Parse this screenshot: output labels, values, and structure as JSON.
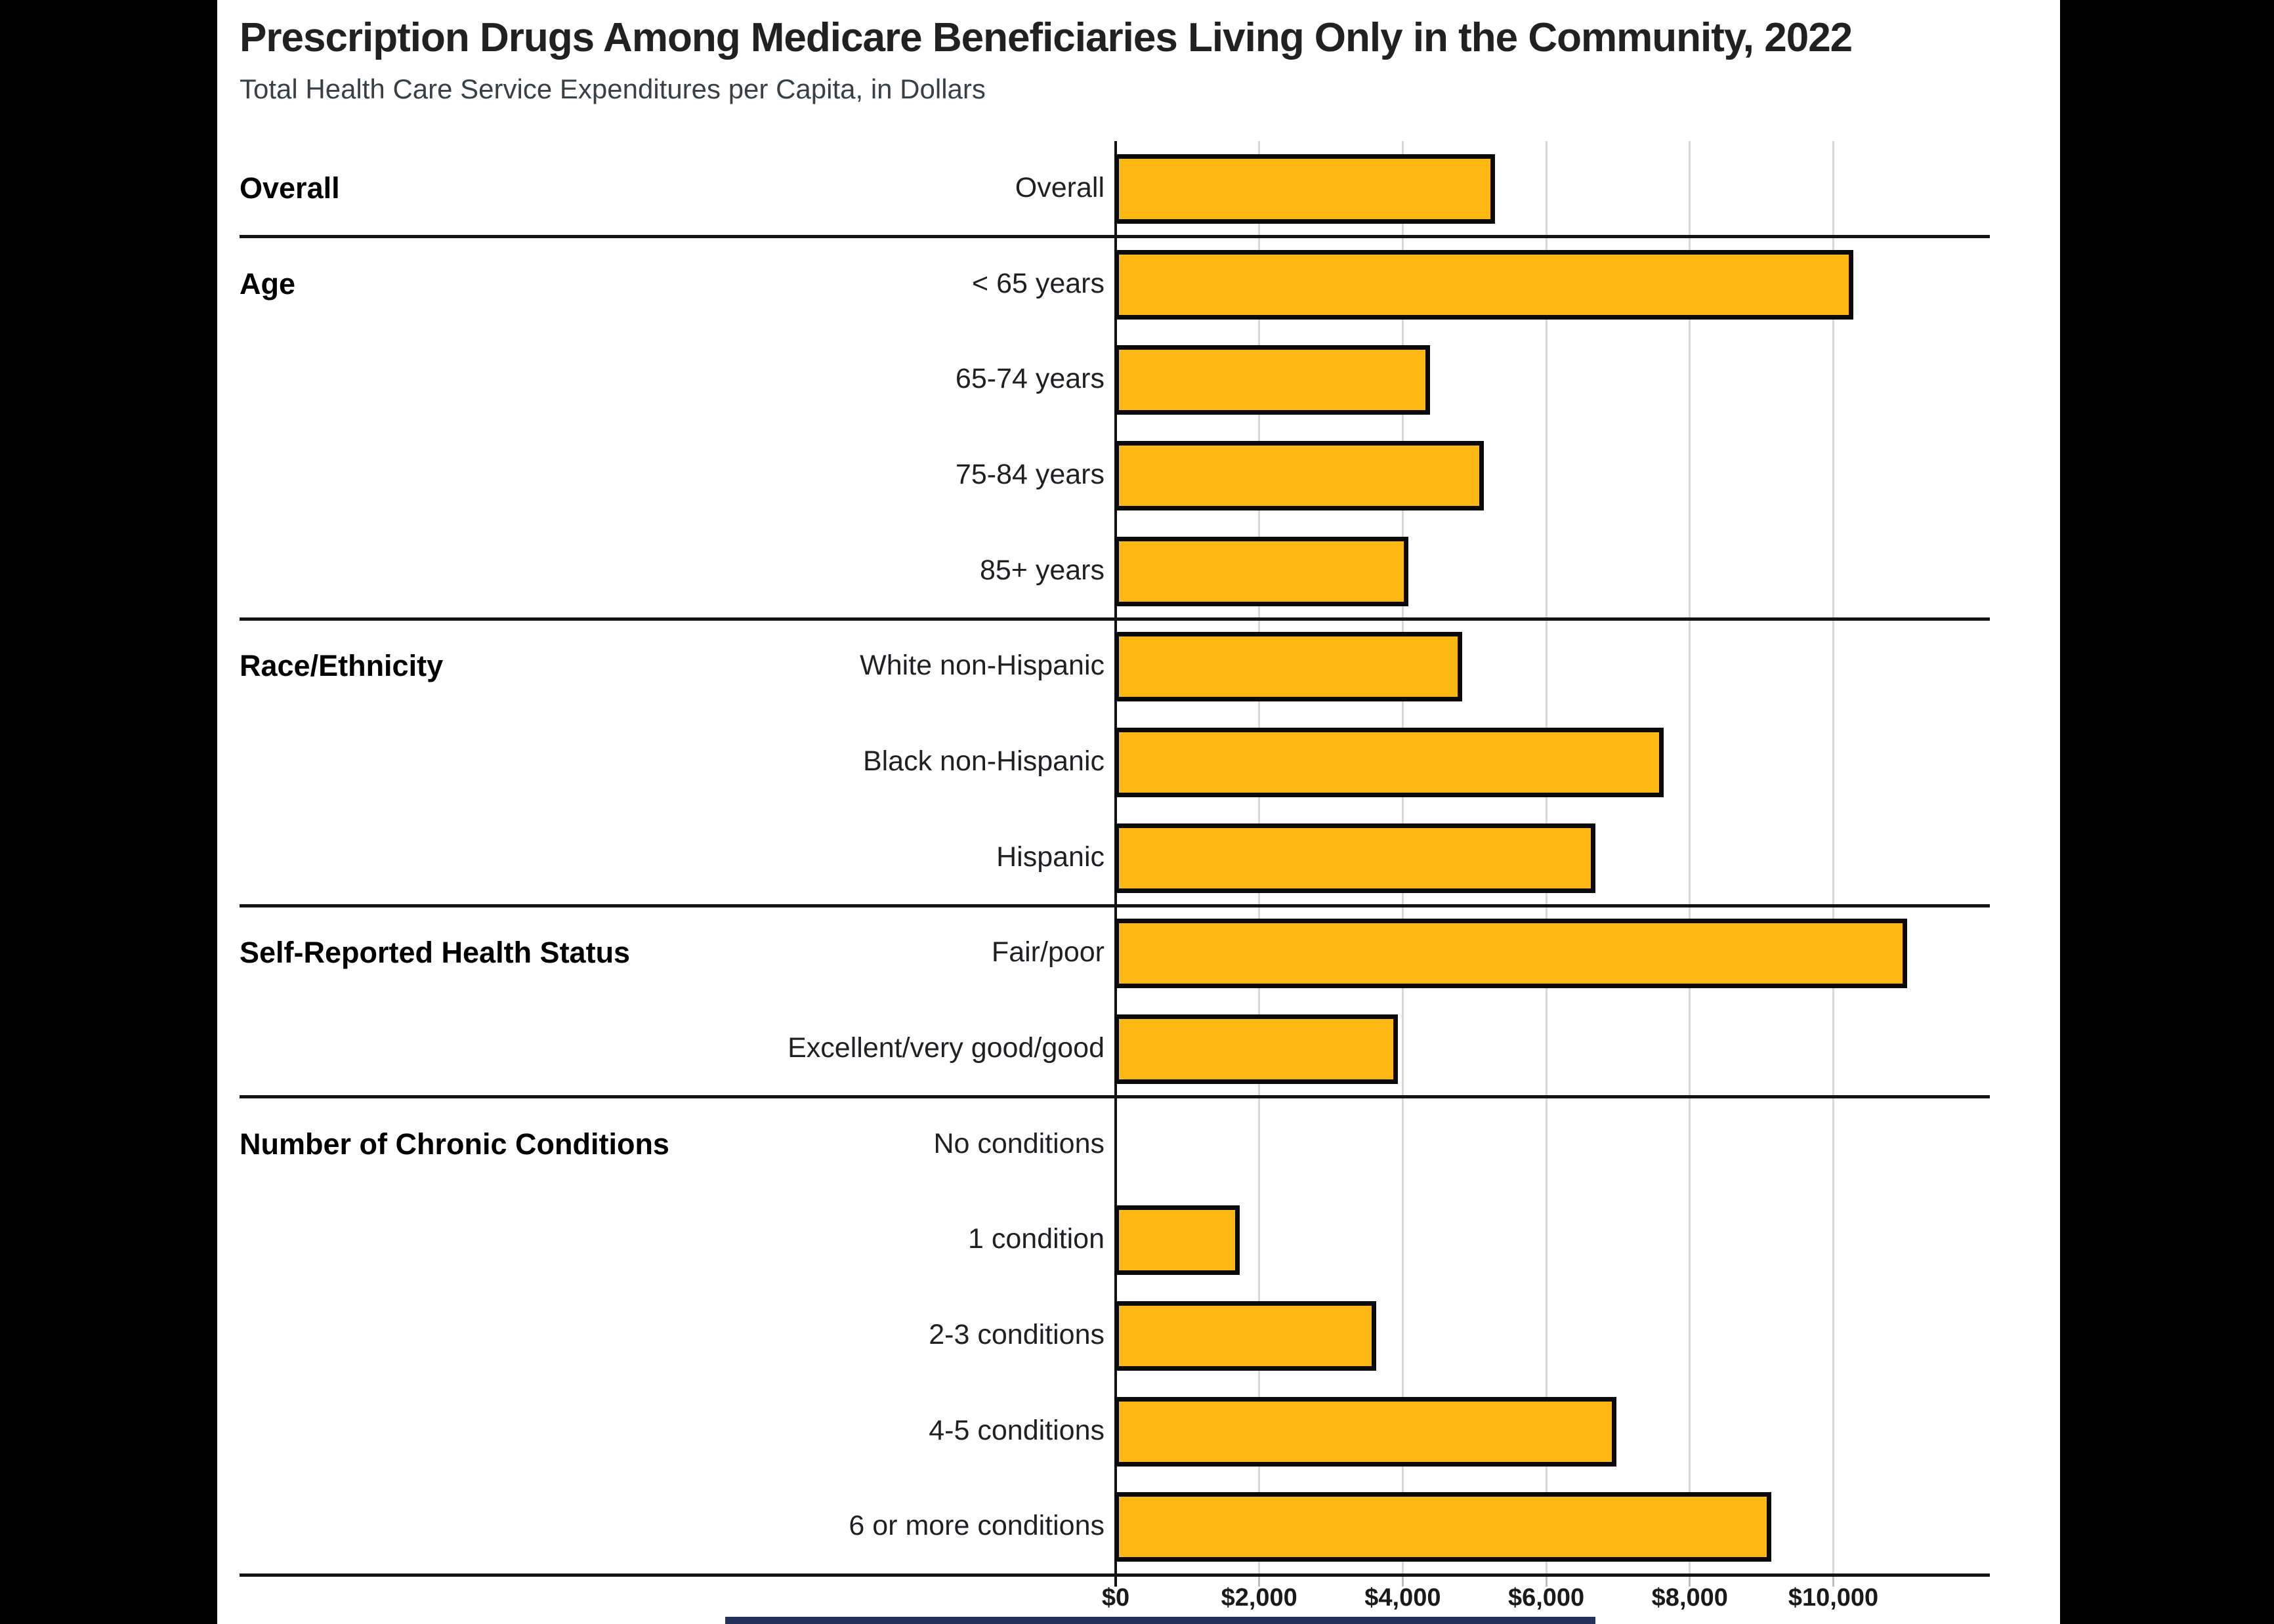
{
  "page": {
    "letterbox_color": "#000000",
    "canvas_color": "#ffffff"
  },
  "chart_data": {
    "type": "bar",
    "orientation": "horizontal",
    "title": "Prescription Drugs Among Medicare Beneficiaries Living Only in the Community, 2022",
    "subtitle": "Total Health Care Service Expenditures per Capita, in Dollars",
    "value_unit": "dollars per capita",
    "x_axis": {
      "min": 0,
      "max": 12160,
      "tick_step": 2000,
      "tick_labels": [
        "$0",
        "$2,000",
        "$4,000",
        "$6,000",
        "$8,000",
        "$10,000"
      ],
      "gridlines": true
    },
    "bar_color": "#FDB813",
    "bar_border_color": "#0a0a0a",
    "gridline_color": "#d8d8d8",
    "sections": [
      {
        "label": "Overall",
        "rows": [
          {
            "label": "Overall",
            "value": 5300
          }
        ]
      },
      {
        "label": "Age",
        "rows": [
          {
            "label": "< 65 years",
            "value": 10300
          },
          {
            "label": "65-74 years",
            "value": 4400
          },
          {
            "label": "75-84 years",
            "value": 5150
          },
          {
            "label": "85+ years",
            "value": 4100
          }
        ]
      },
      {
        "label": "Race/Ethnicity",
        "rows": [
          {
            "label": "White non-Hispanic",
            "value": 4850
          },
          {
            "label": "Black non-Hispanic",
            "value": 7650
          },
          {
            "label": "Hispanic",
            "value": 6700
          }
        ]
      },
      {
        "label": "Self-Reported Health Status",
        "rows": [
          {
            "label": "Fair/poor",
            "value": 11050
          },
          {
            "label": "Excellent/very good/good",
            "value": 3950
          }
        ]
      },
      {
        "label": "Number of Chronic Conditions",
        "rows": [
          {
            "label": "No conditions",
            "value": 0
          },
          {
            "label": "1 condition",
            "value": 1750
          },
          {
            "label": "2-3 conditions",
            "value": 3650
          },
          {
            "label": "4-5 conditions",
            "value": 7000
          },
          {
            "label": "6 or more conditions",
            "value": 9150
          }
        ]
      }
    ],
    "footer_bar_color": "#233059"
  }
}
